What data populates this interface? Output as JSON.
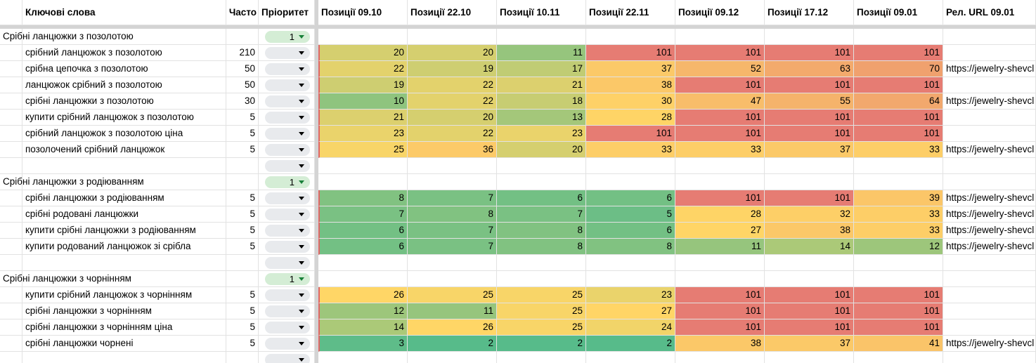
{
  "header": {
    "columns": [
      "Ключові слова",
      "Часто",
      "Пріоритет",
      "Позиції 09.10",
      "Позиції 22.10",
      "Позиції 10.11",
      "Позиції 22.11",
      "Позиції 09.12",
      "Позиції 17.12",
      "Позиції 09.01",
      "Рел. URL 09.01"
    ]
  },
  "color_scale": {
    "min_color": "#57bb8a",
    "mid_color": "#ffd666",
    "max_color": "#e67c73"
  },
  "groups": [
    {
      "title": "Срібні ланцюжки з позолотою",
      "priority": 1,
      "rows": [
        {
          "keyword": "срібний ланцюжок з позолотою",
          "frequency": 210,
          "positions": [
            20,
            20,
            11,
            101,
            101,
            101,
            101
          ],
          "url": null
        },
        {
          "keyword": "срібна цепочка з позолотою",
          "frequency": 50,
          "positions": [
            22,
            19,
            17,
            37,
            52,
            63,
            70
          ],
          "url": "https://jewelry-shevcl"
        },
        {
          "keyword": "ланцюжок срібний з позолотою",
          "frequency": 50,
          "positions": [
            19,
            22,
            21,
            38,
            101,
            101,
            101
          ],
          "url": null
        },
        {
          "keyword": "срібні ланцюжки з позолотою",
          "frequency": 30,
          "positions": [
            10,
            22,
            18,
            30,
            47,
            55,
            64
          ],
          "url": "https://jewelry-shevcl"
        },
        {
          "keyword": "купити срібний ланцюжок з позолотою",
          "frequency": 5,
          "positions": [
            21,
            20,
            13,
            28,
            101,
            101,
            101
          ],
          "url": null
        },
        {
          "keyword": "срібний ланцюжок з позолотою ціна",
          "frequency": 5,
          "positions": [
            23,
            22,
            23,
            101,
            101,
            101,
            101
          ],
          "url": null
        },
        {
          "keyword": "позолочений срібний ланцюжок",
          "frequency": 5,
          "positions": [
            25,
            36,
            20,
            33,
            33,
            37,
            33
          ],
          "url": "https://jewelry-shevcl"
        }
      ]
    },
    {
      "title": "Срібні ланцюжки з родіюванням",
      "priority": 1,
      "rows": [
        {
          "keyword": "срібні ланцюжки з родіюванням",
          "frequency": 5,
          "positions": [
            8,
            7,
            6,
            6,
            101,
            101,
            39
          ],
          "url": "https://jewelry-shevcl"
        },
        {
          "keyword": "срібні родовані ланцюжки",
          "frequency": 5,
          "positions": [
            7,
            8,
            7,
            5,
            28,
            32,
            33
          ],
          "url": "https://jewelry-shevcl"
        },
        {
          "keyword": "купити срібні ланцюжки з родіюванням",
          "frequency": 5,
          "positions": [
            6,
            7,
            8,
            6,
            27,
            38,
            33
          ],
          "url": "https://jewelry-shevcl"
        },
        {
          "keyword": "купити родований ланцюжок зі срібла",
          "frequency": 5,
          "positions": [
            6,
            7,
            8,
            8,
            11,
            14,
            12
          ],
          "url": "https://jewelry-shevcl"
        }
      ]
    },
    {
      "title": "Срібні ланцюжки з чорнінням",
      "priority": 1,
      "rows": [
        {
          "keyword": "купити срібний ланцюжок з чорнінням",
          "frequency": 5,
          "positions": [
            26,
            25,
            25,
            23,
            101,
            101,
            101
          ],
          "url": null
        },
        {
          "keyword": "срібні ланцюжки з чорнінням",
          "frequency": 5,
          "positions": [
            12,
            11,
            25,
            27,
            101,
            101,
            101
          ],
          "url": null
        },
        {
          "keyword": "срібні ланцюжки з чорнінням ціна",
          "frequency": 5,
          "positions": [
            14,
            26,
            25,
            24,
            101,
            101,
            101
          ],
          "url": null
        },
        {
          "keyword": "срібні ланцюжки чорнені",
          "frequency": 5,
          "positions": [
            3,
            2,
            2,
            2,
            38,
            37,
            41
          ],
          "url": "https://jewelry-shevcl"
        }
      ]
    }
  ]
}
